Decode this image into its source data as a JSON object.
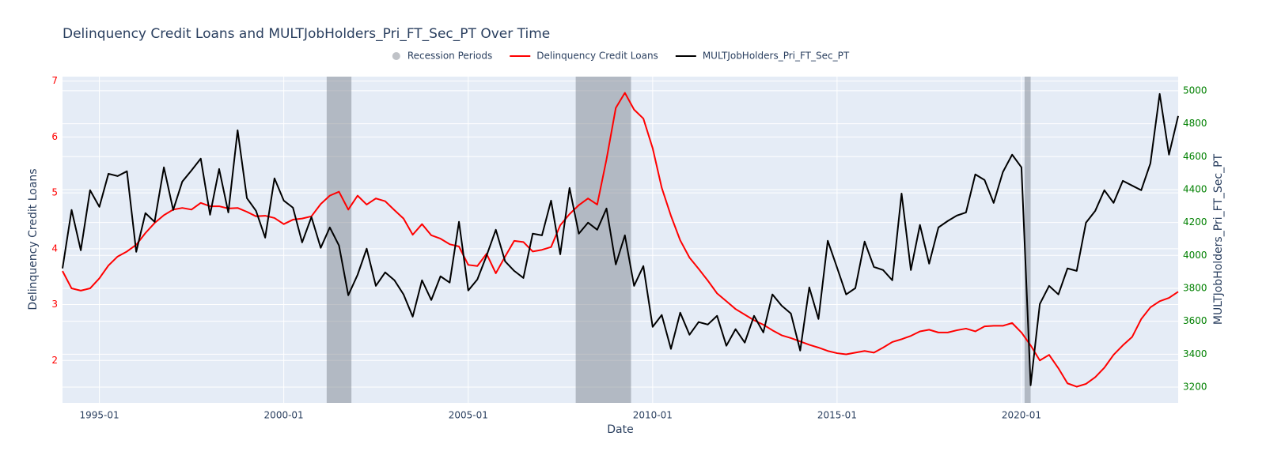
{
  "chart_data": {
    "type": "line",
    "title": "Delinquency Credit Loans and MULTJobHolders_Pri_FT_Sec_PT Over Time",
    "xlabel": "Date",
    "ylabel": "Delinquency Credit Loans",
    "y2label": "MULTJobHolders_Pri_FT_Sec_PT",
    "ycolor": "red",
    "y2color": "green",
    "legend": "top",
    "grid": true,
    "x": [
      "1994-01",
      "1994-04",
      "1994-07",
      "1994-10",
      "1995-01",
      "1995-04",
      "1995-07",
      "1995-10",
      "1996-01",
      "1996-04",
      "1996-07",
      "1996-10",
      "1997-01",
      "1997-04",
      "1997-07",
      "1997-10",
      "1998-01",
      "1998-04",
      "1998-07",
      "1998-10",
      "1999-01",
      "1999-04",
      "1999-07",
      "1999-10",
      "2000-01",
      "2000-04",
      "2000-07",
      "2000-10",
      "2001-01",
      "2001-04",
      "2001-07",
      "2001-10",
      "2002-01",
      "2002-04",
      "2002-07",
      "2002-10",
      "2003-01",
      "2003-04",
      "2003-07",
      "2003-10",
      "2004-01",
      "2004-04",
      "2004-07",
      "2004-10",
      "2005-01",
      "2005-04",
      "2005-07",
      "2005-10",
      "2006-01",
      "2006-04",
      "2006-07",
      "2006-10",
      "2007-01",
      "2007-04",
      "2007-07",
      "2007-10",
      "2008-01",
      "2008-04",
      "2008-07",
      "2008-10",
      "2009-01",
      "2009-04",
      "2009-07",
      "2009-10",
      "2010-01",
      "2010-04",
      "2010-07",
      "2010-10",
      "2011-01",
      "2011-04",
      "2011-07",
      "2011-10",
      "2012-01",
      "2012-04",
      "2012-07",
      "2012-10",
      "2013-01",
      "2013-04",
      "2013-07",
      "2013-10",
      "2014-01",
      "2014-04",
      "2014-07",
      "2014-10",
      "2015-01",
      "2015-04",
      "2015-07",
      "2015-10",
      "2016-01",
      "2016-04",
      "2016-07",
      "2016-10",
      "2017-01",
      "2017-04",
      "2017-07",
      "2017-10",
      "2018-01",
      "2018-04",
      "2018-07",
      "2018-10",
      "2019-01",
      "2019-04",
      "2019-07",
      "2019-10",
      "2020-01",
      "2020-04",
      "2020-07",
      "2020-10",
      "2021-01",
      "2021-04",
      "2021-07",
      "2021-10",
      "2022-01",
      "2022-04",
      "2022-07",
      "2022-10",
      "2023-01",
      "2023-04",
      "2023-07",
      "2023-10",
      "2024-01",
      "2024-04"
    ],
    "xlim": [
      "1994-01",
      "2024-04"
    ],
    "xticks": [
      "1995-01",
      "2000-01",
      "2005-01",
      "2010-01",
      "2015-01",
      "2020-01"
    ],
    "ylim": [
      1.24,
      7.08
    ],
    "yticks": [
      2,
      3,
      4,
      5,
      6,
      7
    ],
    "y2lim": [
      3104,
      5086
    ],
    "y2ticks": [
      3200,
      3400,
      3600,
      3800,
      4000,
      4200,
      4400,
      4600,
      4800,
      5000
    ],
    "recessions": {
      "name": "Recession Periods",
      "color": "#80868f",
      "periods": [
        [
          "2001-03",
          "2001-11"
        ],
        [
          "2007-12",
          "2009-06"
        ],
        [
          "2020-02",
          "2020-04"
        ]
      ]
    },
    "series": [
      {
        "name": "Delinquency Credit Loans",
        "color": "red",
        "axis": "y",
        "values": [
          3.6,
          3.29,
          3.25,
          3.29,
          3.47,
          3.7,
          3.86,
          3.95,
          4.07,
          4.28,
          4.46,
          4.6,
          4.7,
          4.73,
          4.7,
          4.82,
          4.76,
          4.76,
          4.72,
          4.73,
          4.66,
          4.58,
          4.59,
          4.55,
          4.44,
          4.52,
          4.54,
          4.58,
          4.8,
          4.95,
          5.02,
          4.7,
          4.95,
          4.79,
          4.9,
          4.85,
          4.69,
          4.54,
          4.25,
          4.44,
          4.24,
          4.18,
          4.08,
          4.04,
          3.71,
          3.69,
          3.91,
          3.56,
          3.86,
          4.14,
          4.12,
          3.95,
          3.98,
          4.03,
          4.42,
          4.62,
          4.78,
          4.9,
          4.79,
          5.6,
          6.52,
          6.79,
          6.49,
          6.33,
          5.8,
          5.09,
          4.59,
          4.15,
          3.84,
          3.64,
          3.43,
          3.2,
          3.06,
          2.92,
          2.82,
          2.72,
          2.64,
          2.54,
          2.45,
          2.4,
          2.34,
          2.28,
          2.23,
          2.17,
          2.13,
          2.11,
          2.14,
          2.17,
          2.14,
          2.23,
          2.33,
          2.38,
          2.44,
          2.52,
          2.55,
          2.5,
          2.5,
          2.54,
          2.57,
          2.52,
          2.61,
          2.62,
          2.62,
          2.67,
          2.5,
          2.27,
          2.0,
          2.1,
          1.86,
          1.59,
          1.53,
          1.58,
          1.7,
          1.87,
          2.1,
          2.27,
          2.42,
          2.74,
          2.95,
          3.06,
          3.12,
          3.23
        ]
      },
      {
        "name": "MULTJobHolders_Pri_FT_Sec_PT",
        "color": "black",
        "axis": "y2",
        "values": [
          3921,
          4276,
          4031,
          4396,
          4295,
          4496,
          4482,
          4511,
          4022,
          4257,
          4204,
          4535,
          4276,
          4448,
          4516,
          4588,
          4247,
          4525,
          4261,
          4760,
          4348,
          4271,
          4108,
          4468,
          4333,
          4290,
          4079,
          4233,
          4046,
          4170,
          4060,
          3758,
          3882,
          4041,
          3815,
          3897,
          3849,
          3763,
          3628,
          3849,
          3729,
          3873,
          3835,
          4204,
          3787,
          3854,
          3998,
          4156,
          3964,
          3906,
          3863,
          4132,
          4122,
          4333,
          4007,
          4410,
          4132,
          4199,
          4156,
          4285,
          3945,
          4122,
          3815,
          3935,
          3566,
          3638,
          3432,
          3652,
          3518,
          3595,
          3580,
          3633,
          3451,
          3552,
          3470,
          3633,
          3532,
          3763,
          3695,
          3647,
          3422,
          3806,
          3614,
          4089,
          3926,
          3763,
          3801,
          4084,
          3930,
          3911,
          3849,
          4376,
          3911,
          4185,
          3950,
          4170,
          4209,
          4242,
          4261,
          4492,
          4458,
          4319,
          4506,
          4612,
          4535,
          3211,
          3705,
          3815,
          3763,
          3921,
          3906,
          4199,
          4271,
          4396,
          4319,
          4453,
          4424,
          4396,
          4559,
          4981,
          4612,
          4847
        ]
      }
    ]
  }
}
